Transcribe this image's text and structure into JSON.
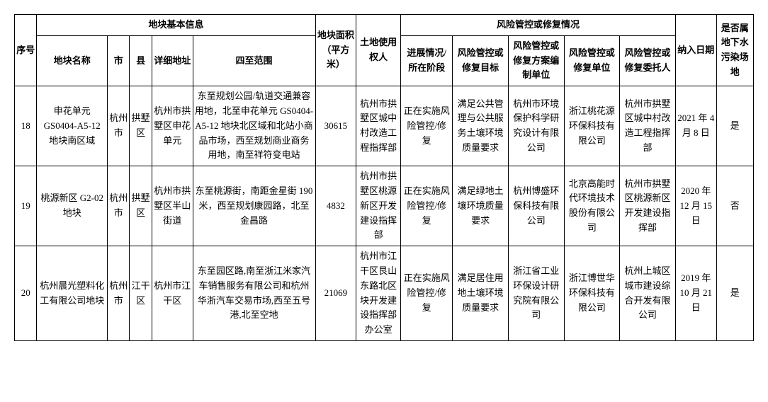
{
  "headers": {
    "seq": "序号",
    "basic_info": "地块基本信息",
    "name": "地块名称",
    "city": "市",
    "county": "县",
    "addr": "详细地址",
    "bounds": "四至范围",
    "area": "地块面积（平方米）",
    "user": "土地使用权人",
    "risk_control": "风险管控或修复情况",
    "progress": "进展情况/所在阶段",
    "target": "风险管控或修复目标",
    "planner": "风险管控或修复方案编制单位",
    "unit": "风险管控或修复单位",
    "client": "风险管控或修复委托人",
    "date": "纳入日期",
    "groundwater": "是否属地下水污染场地"
  },
  "rows": [
    {
      "seq": "18",
      "name": "申花单元 GS0404-A5-12 地块南区域",
      "city": "杭州市",
      "county": "拱墅区",
      "addr": "杭州市拱墅区申花单元",
      "bounds": "东至规划公园/轨道交通兼容用地，北至申花单元 GS0404-A5-12 地块北区域和北站小商品市场，西至规划商业商务用地，南至祥符变电站",
      "area": "30615",
      "user": "杭州市拱墅区城中村改造工程指挥部",
      "progress": "正在实施风险管控/修复",
      "target": "满足公共管理与公共服务土壤环境质量要求",
      "planner": "杭州市环境保护科学研究设计有限公司",
      "unit": "浙江桃花源环保科技有限公司",
      "client": "杭州市拱墅区城中村改造工程指挥部",
      "date": "2021 年 4 月 8 日",
      "groundwater": "是"
    },
    {
      "seq": "19",
      "name": "桃源新区 G2-02 地块",
      "city": "杭州市",
      "county": "拱墅区",
      "addr": "杭州市拱墅区半山街道",
      "bounds": "东至桃源街，南距金星街 190 米，西至规划康园路，北至金昌路",
      "area": "4832",
      "user": "杭州市拱墅区桃源新区开发建设指挥部",
      "progress": "正在实施风险管控/修复",
      "target": "满足绿地土壤环境质量要求",
      "planner": "杭州博盛环保科技有限公司",
      "unit": "北京高能时代环境技术股份有限公司",
      "client": "杭州市拱墅区桃源新区开发建设指挥部",
      "date": "2020 年 12 月 15 日",
      "groundwater": "否"
    },
    {
      "seq": "20",
      "name": "杭州晨光塑料化工有限公司地块",
      "city": "杭州市",
      "county": "江干区",
      "addr": "杭州市江干区",
      "bounds": "东至园区路,南至浙江米家汽车销售服务有限公司和杭州华浙汽车交易市场,西至五号港,北至空地",
      "area": "21069",
      "user": "杭州市江干区艮山东路北区块开发建设指挥部办公室",
      "progress": "正在实施风险管控/修复",
      "target": "满足居住用地土壤环境质量要求",
      "planner": "浙江省工业环保设计研究院有限公司",
      "unit": "浙江博世华环保科技有限公司",
      "client": "杭州上城区城市建设综合开发有限公司",
      "date": "2019 年 10 月 21 日",
      "groundwater": "是"
    }
  ]
}
